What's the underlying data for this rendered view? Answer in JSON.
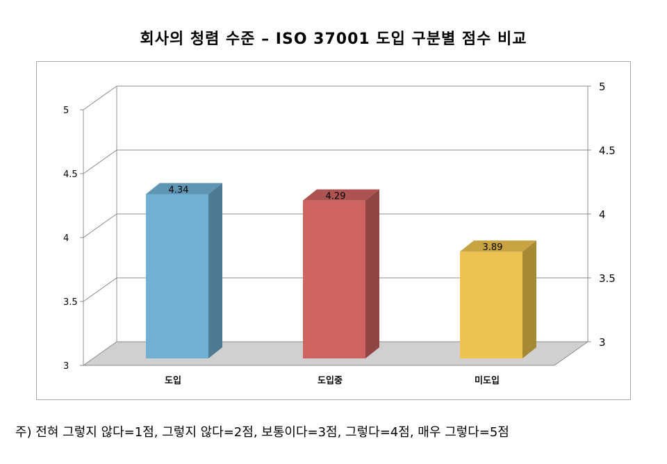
{
  "chart_data": {
    "type": "bar",
    "title": "회사의 청렴 수준 – ISO 37001 도입 구분별 점수 비교",
    "categories": [
      "도입",
      "도입중",
      "미도입"
    ],
    "values": [
      4.34,
      4.29,
      3.89
    ],
    "data_labels": [
      "4.34",
      "4.29",
      "3.89"
    ],
    "ylim": [
      3,
      5
    ],
    "yticks": [
      "3",
      "3.5",
      "4",
      "4.5",
      "5"
    ],
    "colors": [
      "#71b0d2",
      "#cd6462",
      "#ecc351"
    ],
    "side_colors": [
      "#4f7a93",
      "#904545",
      "#a68935"
    ],
    "top_colors": [
      "#5f94b3",
      "#ad5452",
      "#c7a441"
    ],
    "grid": true,
    "three_d": true
  },
  "note": "주) 전혀 그렇지 않다=1점, 그렇지 않다=2점, 보통이다=3점, 그렇다=4점, 매우 그렇다=5점"
}
